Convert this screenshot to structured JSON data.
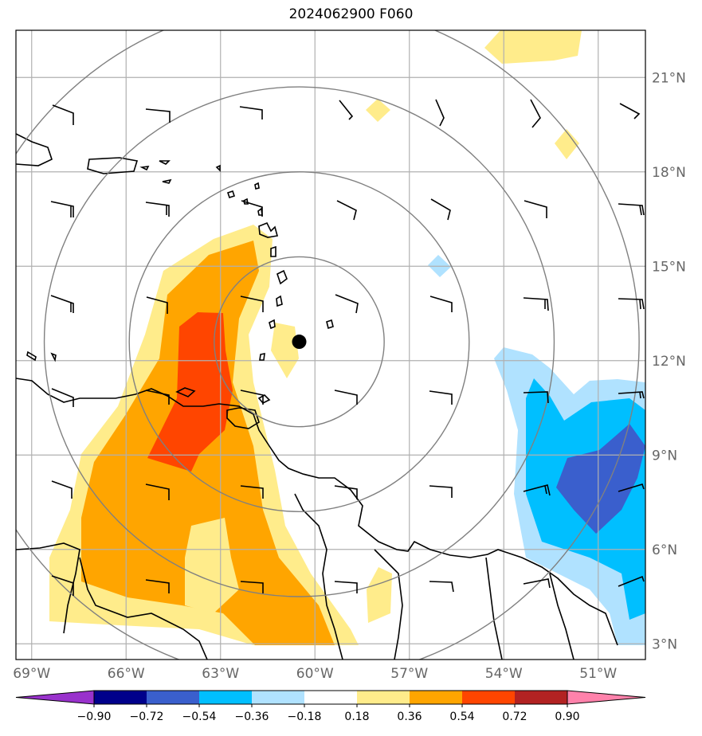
{
  "title": "2024062900 F060",
  "colors": {
    "land": "#000000",
    "grid": "#b0b0b0",
    "rings": "#808080",
    "storm_center": "#000000"
  },
  "map": {
    "lon_range": [
      -69.5,
      -49.5
    ],
    "lat_range": [
      2.5,
      22.5
    ],
    "lon_ticks": [
      -69,
      -66,
      -63,
      -60,
      -57,
      -54,
      -51
    ],
    "lat_ticks": [
      3,
      6,
      9,
      12,
      15,
      18,
      21
    ],
    "lon_labels": [
      "69°W",
      "66°W",
      "63°W",
      "60°W",
      "57°W",
      "54°W",
      "51°W"
    ],
    "lat_labels": [
      "3°N",
      "6°N",
      "9°N",
      "12°N",
      "15°N",
      "18°N",
      "21°N"
    ],
    "storm_center": {
      "lon": -60.5,
      "lat": 12.6
    },
    "range_rings_deg": [
      2.7,
      5.4,
      8.1,
      10.8
    ]
  },
  "colorbar": {
    "boundaries": [
      -0.9,
      -0.72,
      -0.54,
      -0.36,
      -0.18,
      0.18,
      0.36,
      0.54,
      0.72,
      0.9
    ],
    "labels": [
      "−0.90",
      "−0.72",
      "−0.54",
      "−0.36",
      "−0.18",
      "0.18",
      "0.36",
      "0.54",
      "0.72",
      "0.90"
    ],
    "colors": [
      "#9932cc",
      "#00008b",
      "#3a5fcd",
      "#00bfff",
      "#b0e2ff",
      "#ffffff",
      "#ffec8b",
      "#ffa500",
      "#ff4500",
      "#b22222",
      "#ff82ab"
    ],
    "extend": "both"
  }
}
